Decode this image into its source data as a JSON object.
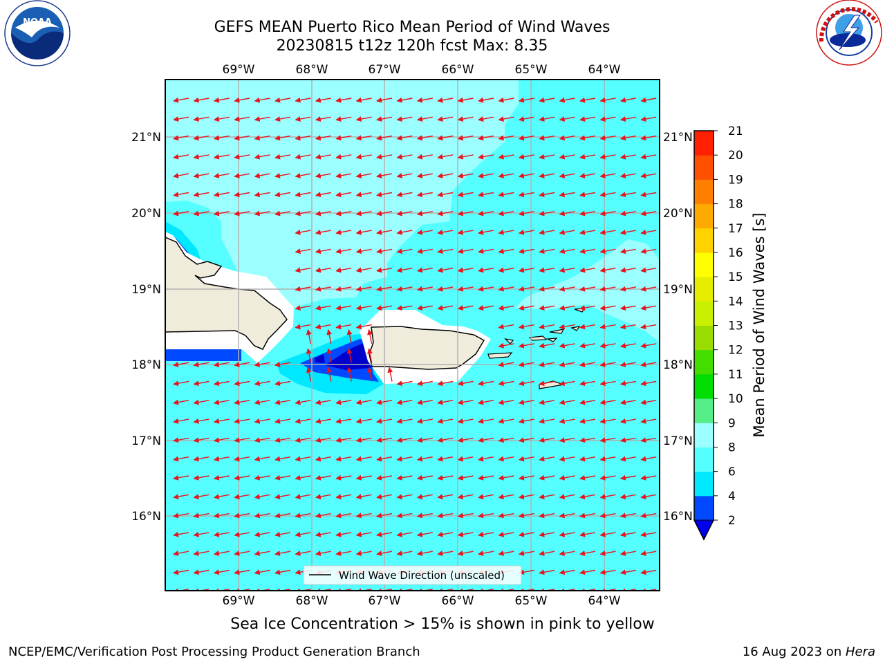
{
  "title": {
    "line1": "GEFS MEAN Puerto Rico Mean Period of Wind Waves",
    "line2": "20230815 t12z 120h fcst   Max: 8.35"
  },
  "logos": {
    "left": {
      "name": "noaa-logo",
      "text": "NOAA",
      "ring_text": "NATIONAL OCEANIC AND ATMOSPHERIC ADMINISTRATION • U.S. DEPARTMENT OF COMMERCE"
    },
    "right": {
      "name": "nws-logo",
      "ring_text": "NATIONAL WEATHER SERVICE"
    }
  },
  "map": {
    "lon_labels": [
      "69°W",
      "68°W",
      "67°W",
      "66°W",
      "65°W",
      "64°W"
    ],
    "lat_labels": [
      "21°N",
      "20°N",
      "19°N",
      "18°N",
      "17°N",
      "16°N"
    ],
    "legend": "Wind Wave Direction (unscaled)",
    "arrow_color": "#e8141c",
    "land_color": "#efecdc",
    "grid_color": "#b0b0b0"
  },
  "colorbar": {
    "label": "Mean Period of Wind Waves [s]",
    "ticks": [
      "2",
      "4",
      "6",
      "8",
      "9",
      "10",
      "11",
      "12",
      "13",
      "14",
      "15",
      "16",
      "17",
      "18",
      "19",
      "20",
      "21"
    ],
    "colors": [
      "#0049ff",
      "#00e8ff",
      "#55ffff",
      "#9cffff",
      "#55ee88",
      "#00dd00",
      "#44dd00",
      "#99dd00",
      "#c8f000",
      "#e5ee00",
      "#ffff00",
      "#ffd200",
      "#ffaa00",
      "#ff8000",
      "#ff5000",
      "#ff2000"
    ],
    "under_color": "#0000ee"
  },
  "notes": {
    "ice": "Sea Ice Concentration > 15% is shown in pink to yellow",
    "footer_left": "NCEP/EMC/Verification Post Processing Product Generation Branch",
    "footer_date": "16 Aug 2023 on ",
    "footer_host": "Hera"
  }
}
